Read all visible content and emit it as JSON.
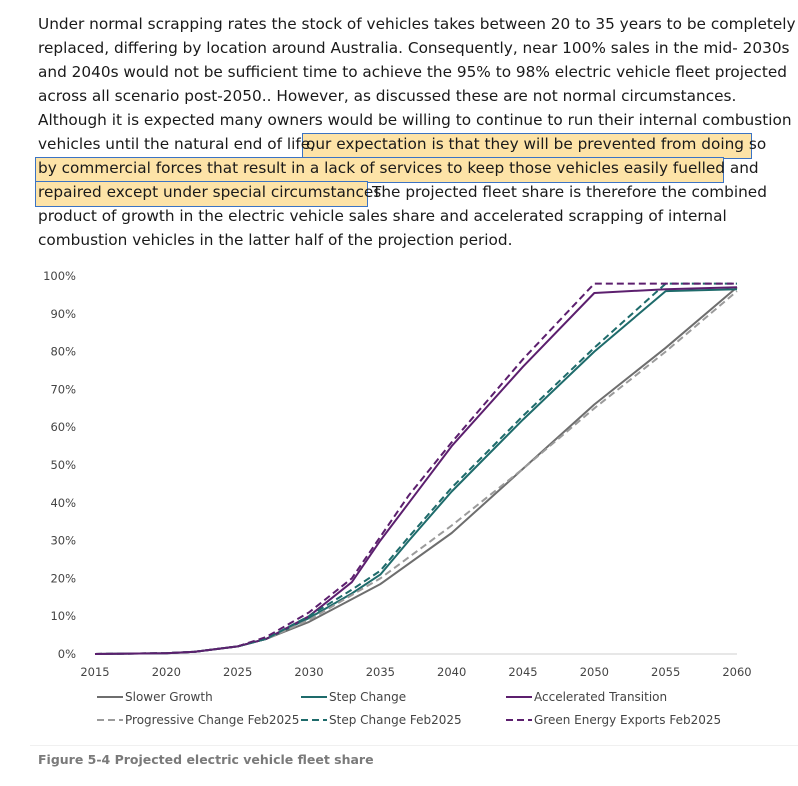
{
  "paragraph": {
    "lines": [
      "Under normal scrapping rates the stock of vehicles takes between 20 to 35 years to be completely",
      "replaced, differing by location around Australia. Consequently, near 100% sales in the mid- 2030s",
      "and 2040s would not be sufficient time to achieve the 95% to 98% electric vehicle fleet projected",
      "across all scenario post-2050.. However, as discussed these are not normal circumstances.",
      "Although it is expected many owners would be willing to continue to run their internal combustion"
    ],
    "line6_pre": "vehicles until the natural end of life,",
    "line6_hl": "our expectation is that they will be prevented from doing so",
    "line7_hl": "by commercial forces that result in a lack of services to keep those vehicles easily fuelled and",
    "line8_hl": "repaired except under special circumstances.",
    "line8_post": "The projected fleet share is therefore the combined",
    "line9": "product of growth in the electric vehicle sales share and accelerated scrapping of internal",
    "line10": "combustion vehicles in the latter half of the projection period."
  },
  "chart_data": {
    "type": "line",
    "xlabel": "",
    "ylabel": "",
    "x_ticks": [
      "2015",
      "2020",
      "2025",
      "2030",
      "2035",
      "2040",
      "2045",
      "2050",
      "2055",
      "2060"
    ],
    "y_ticks": [
      "0%",
      "10%",
      "20%",
      "30%",
      "40%",
      "50%",
      "60%",
      "70%",
      "80%",
      "90%",
      "100%"
    ],
    "xlim": [
      2015,
      2060
    ],
    "ylim": [
      0,
      100
    ],
    "legend_position": "bottom",
    "series": [
      {
        "name": "Slower Growth",
        "color": "#6e6e6e",
        "dashed": false,
        "points": [
          [
            2015,
            0
          ],
          [
            2020,
            0.2
          ],
          [
            2022,
            0.6
          ],
          [
            2025,
            2
          ],
          [
            2027,
            4
          ],
          [
            2030,
            8.5
          ],
          [
            2035,
            18.5
          ],
          [
            2040,
            32
          ],
          [
            2045,
            49
          ],
          [
            2050,
            66
          ],
          [
            2055,
            81
          ],
          [
            2060,
            97
          ]
        ]
      },
      {
        "name": "Step Change",
        "color": "#1e6b6b",
        "dashed": false,
        "points": [
          [
            2015,
            0
          ],
          [
            2020,
            0.2
          ],
          [
            2022,
            0.6
          ],
          [
            2025,
            2
          ],
          [
            2027,
            4
          ],
          [
            2030,
            9.5
          ],
          [
            2033,
            16
          ],
          [
            2035,
            21
          ],
          [
            2037,
            30
          ],
          [
            2040,
            43
          ],
          [
            2045,
            62
          ],
          [
            2050,
            80
          ],
          [
            2055,
            96
          ],
          [
            2060,
            96.5
          ]
        ]
      },
      {
        "name": "Accelerated Transition",
        "color": "#5c1f6e",
        "dashed": false,
        "points": [
          [
            2015,
            0
          ],
          [
            2020,
            0.2
          ],
          [
            2022,
            0.6
          ],
          [
            2025,
            2
          ],
          [
            2027,
            4
          ],
          [
            2030,
            10
          ],
          [
            2033,
            19
          ],
          [
            2035,
            30
          ],
          [
            2037,
            40
          ],
          [
            2040,
            55
          ],
          [
            2045,
            76
          ],
          [
            2050,
            95.5
          ],
          [
            2055,
            96.5
          ],
          [
            2060,
            97
          ]
        ]
      },
      {
        "name": "Progressive Change Feb2025",
        "color": "#9b9b9b",
        "dashed": true,
        "points": [
          [
            2015,
            0
          ],
          [
            2020,
            0.2
          ],
          [
            2022,
            0.6
          ],
          [
            2025,
            2
          ],
          [
            2027,
            4
          ],
          [
            2030,
            9
          ],
          [
            2035,
            20
          ],
          [
            2040,
            34
          ],
          [
            2045,
            49
          ],
          [
            2050,
            65
          ],
          [
            2055,
            80
          ],
          [
            2060,
            96
          ]
        ]
      },
      {
        "name": "Step Change Feb2025",
        "color": "#1e6b6b",
        "dashed": true,
        "points": [
          [
            2015,
            0
          ],
          [
            2020,
            0.2
          ],
          [
            2022,
            0.6
          ],
          [
            2025,
            2
          ],
          [
            2027,
            4
          ],
          [
            2030,
            10
          ],
          [
            2033,
            17
          ],
          [
            2035,
            22
          ],
          [
            2037,
            31
          ],
          [
            2040,
            44
          ],
          [
            2045,
            63
          ],
          [
            2050,
            81
          ],
          [
            2055,
            98
          ],
          [
            2060,
            98
          ]
        ]
      },
      {
        "name": "Green Energy Exports Feb2025",
        "color": "#5c1f6e",
        "dashed": true,
        "points": [
          [
            2015,
            0
          ],
          [
            2020,
            0.2
          ],
          [
            2022,
            0.6
          ],
          [
            2025,
            2
          ],
          [
            2027,
            4.5
          ],
          [
            2030,
            11
          ],
          [
            2033,
            20
          ],
          [
            2035,
            31
          ],
          [
            2037,
            42
          ],
          [
            2040,
            56
          ],
          [
            2045,
            78
          ],
          [
            2050,
            98
          ],
          [
            2055,
            98
          ],
          [
            2060,
            98
          ]
        ]
      }
    ]
  },
  "caption": "Figure 5-4 Projected electric vehicle fleet share"
}
